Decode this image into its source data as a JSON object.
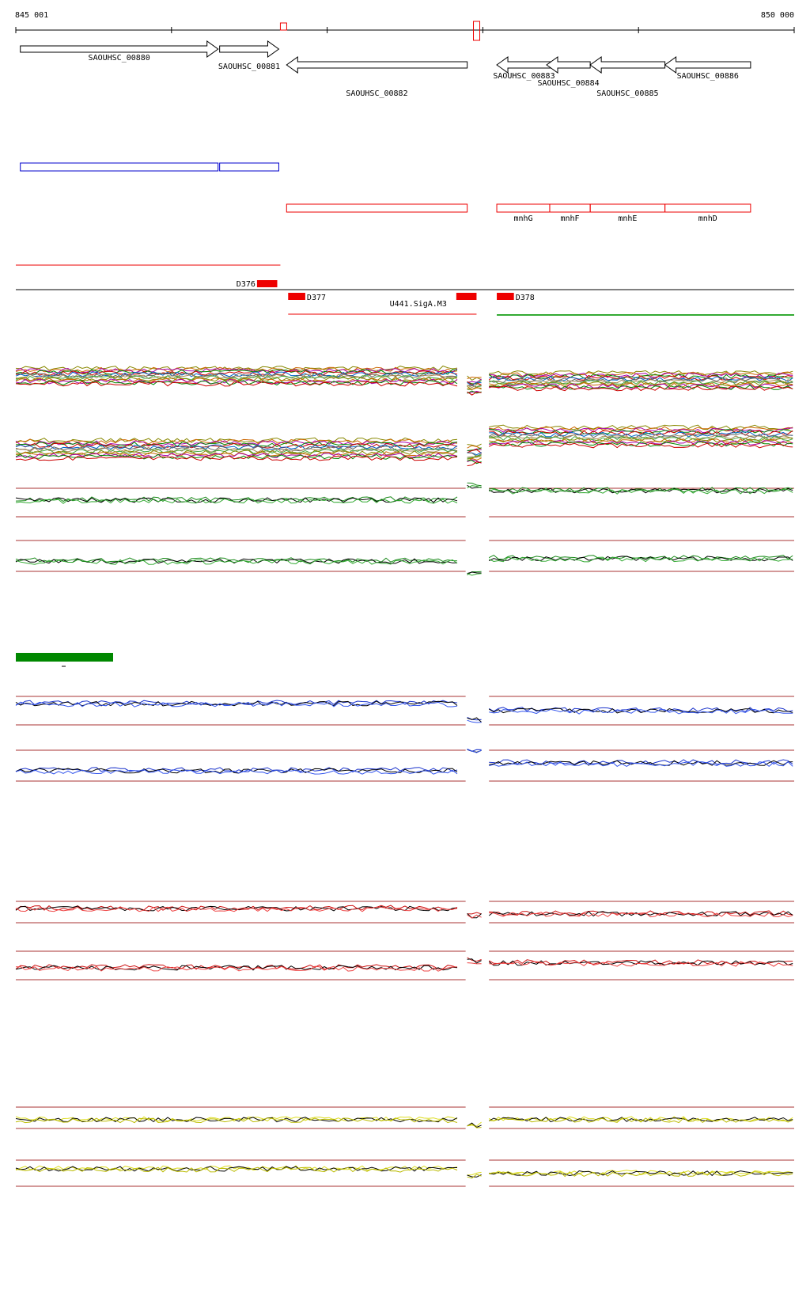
{
  "ruler": {
    "start_label": "845 001",
    "end_label": "850 000",
    "start": 845001,
    "end": 850000
  },
  "colors": {
    "gene_outline": "#000000",
    "annotation_blue": "#0000cc",
    "annotation_red": "#ee0000",
    "legend_green": "#008800",
    "panel_blue": "#1a33cc",
    "panel_red": "#cc1111",
    "panel_yellow": "#dddd22",
    "threshold_line": "#aa3333"
  },
  "genes": [
    {
      "label": "SAOUHSC_00880",
      "strand": "+",
      "start": 845030,
      "end": 846300
    },
    {
      "label": "SAOUHSC_00881",
      "strand": "+",
      "start": 846310,
      "end": 846690
    },
    {
      "label": "SAOUHSC_00882",
      "strand": "-",
      "start": 846740,
      "end": 847900
    },
    {
      "label": "SAOUHSC_00883",
      "strand": "-",
      "start": 848090,
      "end": 848440
    },
    {
      "label": "SAOUHSC_00884",
      "strand": "-",
      "start": 848410,
      "end": 848690
    },
    {
      "label": "SAOUHSC_00885",
      "strand": "-",
      "start": 848690,
      "end": 849170
    },
    {
      "label": "SAOUHSC_00886",
      "strand": "-",
      "start": 849170,
      "end": 849720
    }
  ],
  "operon_labels": [
    {
      "label": "mnhG",
      "start": 848090,
      "end": 848430
    },
    {
      "label": "mnhF",
      "start": 848430,
      "end": 848690
    },
    {
      "label": "mnhE",
      "start": 848690,
      "end": 849170
    },
    {
      "label": "mnhD",
      "start": 849170,
      "end": 849720
    }
  ],
  "features": [
    {
      "label": "D376",
      "start": 846550,
      "end": 846680
    },
    {
      "label": "D377",
      "start": 846750,
      "end": 846860
    },
    {
      "label": "U441.SigA.M3",
      "start": 847830,
      "end": 847960
    },
    {
      "label": "D378",
      "start": 848090,
      "end": 848200
    }
  ],
  "chart_data": {
    "type": "line",
    "x_range": [
      845001,
      850000
    ],
    "xlabel": "",
    "ylabel": "",
    "grid": false,
    "segment_breaks": [
      847900,
      848040
    ],
    "panels": [
      {
        "color": "multi",
        "tracks": [
          {
            "levels": [
              0.35,
              0.55,
              0.45
            ]
          },
          {
            "levels": [
              0.55,
              0.65,
              0.32
            ]
          }
        ]
      },
      {
        "color": "green",
        "tracks": [
          {
            "levels": [
              0.45,
              0.15,
              0.25
            ]
          },
          {
            "levels": [
              0.6,
              0.85,
              0.55
            ]
          }
        ]
      },
      {
        "color": "blue",
        "tracks": [
          {
            "levels": [
              0.35,
              0.7,
              0.5
            ]
          },
          {
            "levels": [
              0.6,
              0.2,
              0.45
            ]
          }
        ]
      },
      {
        "color": "red",
        "tracks": [
          {
            "levels": [
              0.4,
              0.6,
              0.55
            ]
          },
          {
            "levels": [
              0.55,
              0.4,
              0.45
            ]
          }
        ]
      },
      {
        "color": "yellow",
        "tracks": [
          {
            "levels": [
              0.55,
              0.7,
              0.55
            ]
          },
          {
            "levels": [
              0.4,
              0.55,
              0.5
            ]
          }
        ]
      }
    ]
  }
}
